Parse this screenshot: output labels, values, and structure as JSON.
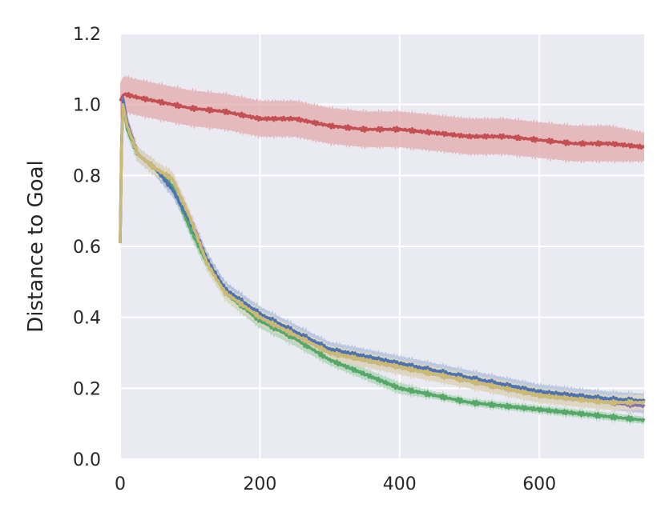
{
  "chart_data": {
    "type": "line",
    "title": "",
    "xlabel": "",
    "ylabel": "Distance to Goal",
    "xlim": [
      0,
      750
    ],
    "ylim": [
      0.0,
      1.2
    ],
    "xticks": [
      0,
      200,
      400,
      600
    ],
    "yticks": [
      0.0,
      0.2,
      0.4,
      0.6,
      0.8,
      1.0,
      1.2
    ],
    "xtick_labels": [
      "0",
      "200",
      "400",
      "600"
    ],
    "ytick_labels": [
      "0.0",
      "0.2",
      "0.4",
      "0.6",
      "0.8",
      "1.0",
      "1.2"
    ],
    "grid": true,
    "legend": "none",
    "background_color": "#eaeaf2",
    "series": [
      {
        "color": "#c44e52",
        "band_color": "#e3a9ab",
        "x": [
          0,
          5,
          25,
          50,
          75,
          100,
          150,
          200,
          250,
          300,
          350,
          400,
          450,
          500,
          550,
          600,
          650,
          700,
          750
        ],
        "y": [
          1.01,
          1.03,
          1.02,
          1.01,
          1.0,
          0.99,
          0.98,
          0.96,
          0.96,
          0.94,
          0.93,
          0.93,
          0.92,
          0.91,
          0.91,
          0.9,
          0.89,
          0.89,
          0.88
        ],
        "band": [
          0.05,
          0.05,
          0.05,
          0.05,
          0.05,
          0.05,
          0.05,
          0.05,
          0.05,
          0.05,
          0.05,
          0.05,
          0.05,
          0.05,
          0.05,
          0.05,
          0.05,
          0.05,
          0.04
        ]
      },
      {
        "color": "#55a868",
        "band_color": "#a8d3b2",
        "x": [
          0,
          3,
          10,
          25,
          50,
          75,
          100,
          125,
          150,
          200,
          250,
          300,
          350,
          400,
          450,
          500,
          550,
          600,
          650,
          700,
          750
        ],
        "y": [
          0.61,
          1.01,
          0.93,
          0.86,
          0.82,
          0.77,
          0.65,
          0.55,
          0.47,
          0.39,
          0.34,
          0.28,
          0.24,
          0.2,
          0.18,
          0.16,
          0.15,
          0.14,
          0.13,
          0.12,
          0.11
        ],
        "band": [
          0.02,
          0.02,
          0.02,
          0.02,
          0.02,
          0.02,
          0.02,
          0.02,
          0.02,
          0.02,
          0.02,
          0.015,
          0.015,
          0.015,
          0.01,
          0.01,
          0.01,
          0.01,
          0.01,
          0.01,
          0.01
        ]
      },
      {
        "color": "#8172b2",
        "band_color": "#bdb5d9",
        "x": [
          0,
          3,
          10,
          25,
          50,
          75,
          100,
          125,
          150,
          200,
          250,
          300,
          350,
          400,
          450,
          500,
          550,
          600,
          650,
          700,
          750
        ],
        "y": [
          0.61,
          1.03,
          0.95,
          0.86,
          0.82,
          0.79,
          0.68,
          0.56,
          0.48,
          0.4,
          0.35,
          0.3,
          0.28,
          0.26,
          0.24,
          0.22,
          0.2,
          0.18,
          0.17,
          0.16,
          0.15
        ],
        "band": [
          0.02,
          0.02,
          0.02,
          0.02,
          0.02,
          0.02,
          0.02,
          0.02,
          0.02,
          0.02,
          0.02,
          0.02,
          0.02,
          0.02,
          0.02,
          0.02,
          0.02,
          0.02,
          0.02,
          0.02,
          0.02
        ]
      },
      {
        "color": "#4c72b0",
        "band_color": "#a9bcdc",
        "x": [
          0,
          3,
          10,
          25,
          50,
          75,
          100,
          125,
          150,
          200,
          250,
          300,
          350,
          400,
          450,
          500,
          550,
          600,
          650,
          700,
          750
        ],
        "y": [
          0.61,
          1.02,
          0.94,
          0.86,
          0.82,
          0.76,
          0.67,
          0.56,
          0.48,
          0.41,
          0.36,
          0.31,
          0.29,
          0.27,
          0.25,
          0.23,
          0.21,
          0.19,
          0.18,
          0.17,
          0.165
        ],
        "band": [
          0.02,
          0.02,
          0.02,
          0.02,
          0.02,
          0.02,
          0.02,
          0.02,
          0.02,
          0.02,
          0.02,
          0.02,
          0.02,
          0.02,
          0.02,
          0.02,
          0.02,
          0.02,
          0.02,
          0.02,
          0.02
        ]
      },
      {
        "color": "#ccb974",
        "band_color": "#e6dcb8",
        "x": [
          0,
          3,
          10,
          25,
          50,
          75,
          100,
          125,
          150,
          200,
          250,
          300,
          350,
          400,
          450,
          500,
          550,
          600,
          650,
          700,
          750
        ],
        "y": [
          0.61,
          1.01,
          0.94,
          0.86,
          0.82,
          0.79,
          0.68,
          0.55,
          0.47,
          0.4,
          0.35,
          0.3,
          0.28,
          0.26,
          0.24,
          0.22,
          0.2,
          0.18,
          0.17,
          0.16,
          0.16
        ],
        "band": [
          0.02,
          0.02,
          0.02,
          0.02,
          0.02,
          0.02,
          0.02,
          0.02,
          0.02,
          0.02,
          0.02,
          0.02,
          0.02,
          0.02,
          0.02,
          0.02,
          0.02,
          0.02,
          0.02,
          0.02,
          0.02
        ]
      }
    ]
  }
}
